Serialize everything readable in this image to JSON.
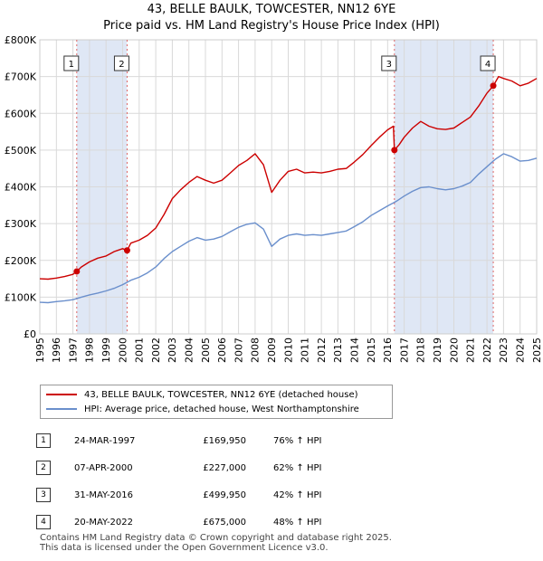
{
  "title_line1": "43, BELLE BAULK, TOWCESTER, NN12 6YE",
  "title_line2": "Price paid vs. HM Land Registry's House Price Index (HPI)",
  "legend": {
    "property": "43, BELLE BAULK, TOWCESTER, NN12 6YE (detached house)",
    "hpi": "HPI: Average price, detached house, West Northamptonshire"
  },
  "colors": {
    "property": "#cc0000",
    "hpi": "#6a8fcc",
    "shade": "#dfe7f5",
    "vline": "#dd6666"
  },
  "chart_data": {
    "type": "line",
    "xlim": [
      1995,
      2025
    ],
    "ylim": [
      0,
      800000
    ],
    "x_ticks": [
      1995,
      1996,
      1997,
      1998,
      1999,
      2000,
      2001,
      2002,
      2003,
      2004,
      2005,
      2006,
      2007,
      2008,
      2009,
      2010,
      2011,
      2012,
      2013,
      2014,
      2015,
      2016,
      2017,
      2018,
      2019,
      2020,
      2021,
      2022,
      2023,
      2024,
      2025
    ],
    "y_ticks": [
      {
        "value": 0,
        "label": "£0"
      },
      {
        "value": 100000,
        "label": "£100K"
      },
      {
        "value": 200000,
        "label": "£200K"
      },
      {
        "value": 300000,
        "label": "£300K"
      },
      {
        "value": 400000,
        "label": "£400K"
      },
      {
        "value": 500000,
        "label": "£500K"
      },
      {
        "value": 600000,
        "label": "£600K"
      },
      {
        "value": 700000,
        "label": "£700K"
      },
      {
        "value": 800000,
        "label": "£800K"
      }
    ],
    "shaded_ranges": [
      [
        1997.23,
        2000.27
      ],
      [
        2016.41,
        2022.38
      ]
    ],
    "series": [
      {
        "name": "43, BELLE BAULK, TOWCESTER, NN12 6YE (detached house)",
        "x": [
          1995.0,
          1995.5,
          1996.0,
          1996.5,
          1997.0,
          1997.23,
          1997.5,
          1998.0,
          1998.5,
          1999.0,
          1999.5,
          2000.0,
          2000.27,
          2000.5,
          2001.0,
          2001.5,
          2002.0,
          2002.5,
          2003.0,
          2003.5,
          2004.0,
          2004.5,
          2005.0,
          2005.5,
          2006.0,
          2006.5,
          2007.0,
          2007.5,
          2008.0,
          2008.5,
          2009.0,
          2009.5,
          2010.0,
          2010.5,
          2011.0,
          2011.5,
          2012.0,
          2012.5,
          2013.0,
          2013.5,
          2014.0,
          2014.5,
          2015.0,
          2015.5,
          2016.0,
          2016.35,
          2016.41,
          2016.7,
          2017.0,
          2017.5,
          2018.0,
          2018.5,
          2019.0,
          2019.5,
          2020.0,
          2020.5,
          2021.0,
          2021.5,
          2022.0,
          2022.38,
          2022.7,
          2023.0,
          2023.5,
          2024.0,
          2024.5,
          2025.0
        ],
        "y": [
          150000,
          149000,
          152000,
          156000,
          162000,
          169950,
          182000,
          196000,
          206000,
          212000,
          224000,
          232000,
          227000,
          247000,
          255000,
          268000,
          288000,
          325000,
          368000,
          392000,
          412000,
          428000,
          418000,
          410000,
          418000,
          438000,
          458000,
          472000,
          490000,
          460000,
          385000,
          418000,
          442000,
          448000,
          438000,
          440000,
          438000,
          442000,
          448000,
          450000,
          468000,
          488000,
          512000,
          535000,
          555000,
          565000,
          499950,
          515000,
          535000,
          560000,
          578000,
          565000,
          558000,
          556000,
          560000,
          575000,
          590000,
          620000,
          655000,
          675000,
          700000,
          695000,
          688000,
          675000,
          682000,
          695000
        ]
      },
      {
        "name": "HPI: Average price, detached house, West Northamptonshire",
        "x": [
          1995.0,
          1995.5,
          1996.0,
          1996.5,
          1997.0,
          1997.5,
          1998.0,
          1998.5,
          1999.0,
          1999.5,
          2000.0,
          2000.5,
          2001.0,
          2001.5,
          2002.0,
          2002.5,
          2003.0,
          2003.5,
          2004.0,
          2004.5,
          2005.0,
          2005.5,
          2006.0,
          2006.5,
          2007.0,
          2007.5,
          2008.0,
          2008.5,
          2009.0,
          2009.5,
          2010.0,
          2010.5,
          2011.0,
          2011.5,
          2012.0,
          2012.5,
          2013.0,
          2013.5,
          2014.0,
          2014.5,
          2015.0,
          2015.5,
          2016.0,
          2016.5,
          2017.0,
          2017.5,
          2018.0,
          2018.5,
          2019.0,
          2019.5,
          2020.0,
          2020.5,
          2021.0,
          2021.5,
          2022.0,
          2022.5,
          2023.0,
          2023.5,
          2024.0,
          2024.5,
          2025.0
        ],
        "y": [
          86000,
          85000,
          88000,
          90000,
          93000,
          100000,
          106000,
          111000,
          117000,
          124000,
          134000,
          146000,
          154000,
          166000,
          182000,
          205000,
          224000,
          238000,
          252000,
          262000,
          255000,
          258000,
          265000,
          278000,
          290000,
          298000,
          302000,
          285000,
          238000,
          258000,
          268000,
          272000,
          268000,
          270000,
          268000,
          272000,
          276000,
          280000,
          292000,
          305000,
          322000,
          335000,
          348000,
          360000,
          375000,
          388000,
          398000,
          400000,
          395000,
          392000,
          395000,
          402000,
          412000,
          435000,
          455000,
          475000,
          490000,
          482000,
          470000,
          472000,
          478000
        ]
      }
    ],
    "sales": [
      {
        "id": "1",
        "x": 1997.23,
        "y": 169950
      },
      {
        "id": "2",
        "x": 2000.27,
        "y": 227000
      },
      {
        "id": "3",
        "x": 2016.41,
        "y": 499950
      },
      {
        "id": "4",
        "x": 2022.38,
        "y": 675000
      }
    ]
  },
  "sales_table": [
    {
      "num": "1",
      "date": "24-MAR-1997",
      "price": "£169,950",
      "hpi": "76% ↑ HPI"
    },
    {
      "num": "2",
      "date": "07-APR-2000",
      "price": "£227,000",
      "hpi": "62% ↑ HPI"
    },
    {
      "num": "3",
      "date": "31-MAY-2016",
      "price": "£499,950",
      "hpi": "42% ↑ HPI"
    },
    {
      "num": "4",
      "date": "20-MAY-2022",
      "price": "£675,000",
      "hpi": "48% ↑ HPI"
    }
  ],
  "footer": {
    "line1": "Contains HM Land Registry data © Crown copyright and database right 2025.",
    "line2": "This data is licensed under the Open Government Licence v3.0."
  }
}
